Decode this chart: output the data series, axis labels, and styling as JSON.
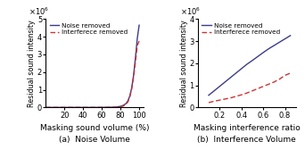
{
  "left": {
    "title": "(a)  Noise Volume",
    "xlabel": "Masking sound volume (%)",
    "ylabel": "Residual sound intensity",
    "xlim": [
      0,
      105
    ],
    "ylim": [
      0,
      5000000.0
    ],
    "xticks": [
      20,
      40,
      60,
      80,
      100
    ],
    "yticks": [
      0,
      1000000.0,
      2000000.0,
      3000000.0,
      4000000.0,
      5000000.0
    ],
    "noise_x": [
      0,
      10,
      20,
      30,
      40,
      50,
      60,
      65,
      70,
      75,
      80,
      83,
      86,
      88,
      90,
      92,
      94,
      96,
      98,
      100
    ],
    "noise_y": [
      0,
      0,
      0,
      0,
      0,
      0,
      0.002,
      0.005,
      0.01,
      0.02,
      0.06,
      0.12,
      0.22,
      0.38,
      0.65,
      1.1,
      1.8,
      2.8,
      3.9,
      4.65
    ],
    "interf_x": [
      0,
      10,
      20,
      30,
      40,
      50,
      60,
      65,
      70,
      75,
      80,
      83,
      86,
      88,
      90,
      92,
      94,
      96,
      98,
      100
    ],
    "interf_y": [
      0,
      0,
      0,
      0,
      0,
      0,
      0.001,
      0.003,
      0.006,
      0.012,
      0.04,
      0.08,
      0.18,
      0.32,
      0.6,
      1.05,
      1.7,
      2.55,
      3.5,
      3.75
    ],
    "noise_color": "#3b3b8b",
    "interf_color": "#cc3333",
    "legend_noise": "Noise removed",
    "legend_interf": "Interferece removed",
    "sci_exp": 6
  },
  "right": {
    "title": "(b)  Interference Volume",
    "xlabel": "Masking interference ratio",
    "ylabel": "Residual sound intensity",
    "xlim": [
      0,
      0.9
    ],
    "ylim": [
      0,
      4000000.0
    ],
    "xticks": [
      0.2,
      0.4,
      0.6,
      0.8
    ],
    "yticks": [
      0,
      1000000.0,
      2000000.0,
      3000000.0,
      4000000.0
    ],
    "noise_x": [
      0.1,
      0.15,
      0.2,
      0.25,
      0.3,
      0.35,
      0.4,
      0.45,
      0.5,
      0.55,
      0.6,
      0.65,
      0.7,
      0.75,
      0.8,
      0.85
    ],
    "noise_y": [
      0.55,
      0.75,
      0.95,
      1.15,
      1.35,
      1.55,
      1.75,
      1.95,
      2.12,
      2.3,
      2.48,
      2.65,
      2.8,
      2.95,
      3.1,
      3.25
    ],
    "interf_x": [
      0.1,
      0.15,
      0.2,
      0.25,
      0.3,
      0.35,
      0.4,
      0.45,
      0.5,
      0.55,
      0.6,
      0.65,
      0.7,
      0.75,
      0.8,
      0.85
    ],
    "interf_y": [
      0.22,
      0.28,
      0.33,
      0.38,
      0.43,
      0.5,
      0.57,
      0.65,
      0.75,
      0.85,
      0.95,
      1.05,
      1.15,
      1.28,
      1.45,
      1.55
    ],
    "noise_color": "#3b3b8b",
    "interf_color": "#cc3333",
    "legend_noise": "Noise removed",
    "legend_interf": "Interferece removed",
    "sci_exp": 6
  }
}
